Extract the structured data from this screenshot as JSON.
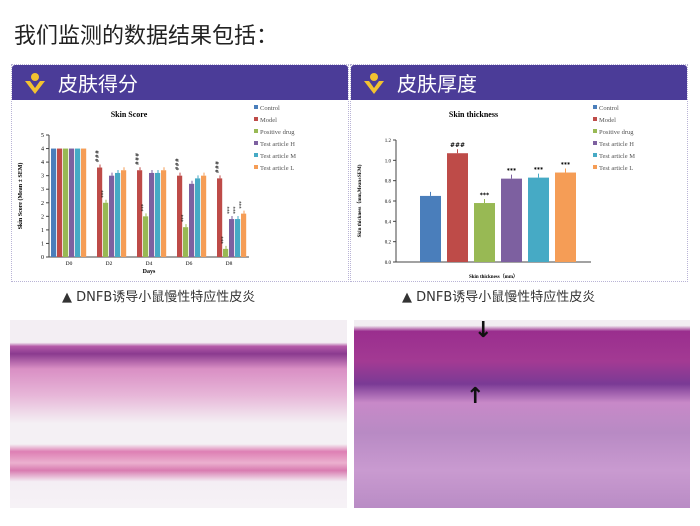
{
  "title": "我们监测的数据结果包括：",
  "panels": [
    {
      "heading": "皮肤得分",
      "caption": "▲  DNFB诱导小鼠慢性特应性皮炎"
    },
    {
      "heading": "皮肤厚度",
      "caption": "▲  DNFB诱导小鼠慢性特应性皮炎"
    }
  ],
  "colors": {
    "header": "#4b3c98",
    "logo": "#f2c230"
  },
  "chart_data": [
    {
      "type": "bar",
      "title": "Skin Score",
      "xlabel": "Days",
      "ylabel": "Skin Score (Mean ± SEM)",
      "categories": [
        "D0",
        "D2",
        "D4",
        "D6",
        "D8"
      ],
      "ytick_labels": [
        "0",
        "1",
        "1",
        "2",
        "2",
        "3",
        "3",
        "4",
        "4",
        "5"
      ],
      "ylim": [
        0,
        4.5
      ],
      "legend": "top-right",
      "series": [
        {
          "name": "Control",
          "color": "#4a7ebb",
          "values": [
            4.0,
            null,
            null,
            null,
            null
          ]
        },
        {
          "name": "Model",
          "color": "#be4b48",
          "values": [
            4.0,
            3.3,
            3.2,
            3.0,
            2.9
          ],
          "annotations": [
            "",
            "###",
            "###",
            "###",
            "###"
          ]
        },
        {
          "name": "Positive drug",
          "color": "#98b954",
          "values": [
            4.0,
            2.0,
            1.5,
            1.1,
            0.3
          ],
          "annotations": [
            "",
            "***",
            "***",
            "***",
            "***"
          ]
        },
        {
          "name": "Test article H",
          "color": "#7d60a0",
          "values": [
            4.0,
            3.0,
            3.1,
            2.7,
            1.4
          ],
          "annotations": [
            "",
            "",
            "",
            "",
            "***"
          ]
        },
        {
          "name": "Test article M",
          "color": "#46aac5",
          "values": [
            4.0,
            3.1,
            3.1,
            2.9,
            1.4
          ],
          "annotations": [
            "",
            "",
            "",
            "",
            "***"
          ]
        },
        {
          "name": "Test article L",
          "color": "#f59d56",
          "values": [
            4.0,
            3.2,
            3.2,
            3.0,
            1.6
          ],
          "annotations": [
            "",
            "",
            "",
            "",
            "***"
          ]
        }
      ]
    },
    {
      "type": "bar",
      "title": "Skin thickness",
      "xlabel": "Skin thickness（mm）",
      "ylabel": "Skin thickness（mm,Mean±SEM)",
      "ytick_labels": [
        "0.0",
        "0.2",
        "0.4",
        "0.6",
        "0.8",
        "1.0",
        "1.2"
      ],
      "ylim": [
        0,
        1.2
      ],
      "legend": "top-right",
      "series": [
        {
          "name": "Control",
          "color": "#4a7ebb",
          "value": 0.65,
          "annotation": ""
        },
        {
          "name": "Model",
          "color": "#be4b48",
          "value": 1.07,
          "annotation": "###"
        },
        {
          "name": "Positive drug",
          "color": "#98b954",
          "value": 0.58,
          "annotation": "***"
        },
        {
          "name": "Test article H",
          "color": "#7d60a0",
          "value": 0.82,
          "annotation": "***"
        },
        {
          "name": "Test article M",
          "color": "#46aac5",
          "value": 0.83,
          "annotation": "***"
        },
        {
          "name": "Test article L",
          "color": "#f59d56",
          "value": 0.88,
          "annotation": "***"
        }
      ]
    }
  ]
}
